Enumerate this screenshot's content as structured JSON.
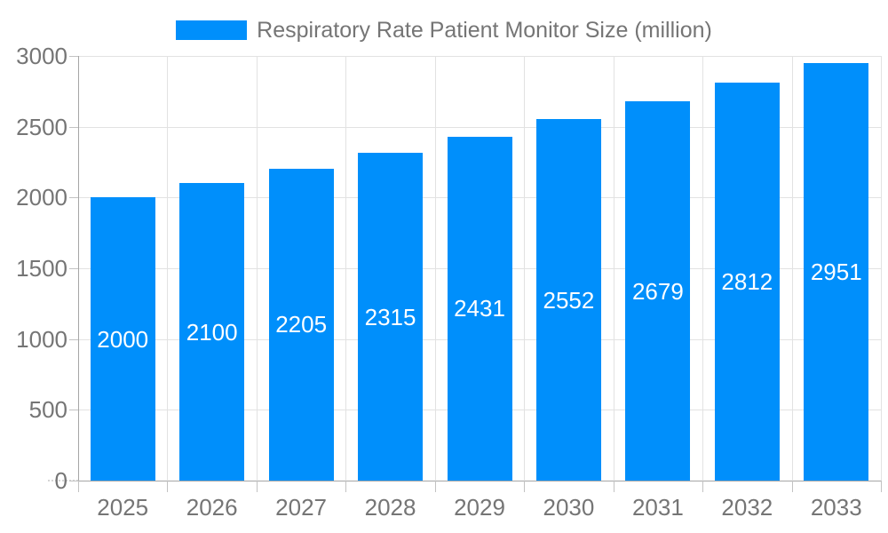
{
  "legend": {
    "swatch_color": "#008FFB"
  },
  "chart_data": {
    "type": "bar",
    "title": "Respiratory Rate Patient Monitor Size (million)",
    "categories": [
      "2025",
      "2026",
      "2027",
      "2028",
      "2029",
      "2030",
      "2031",
      "2032",
      "2033"
    ],
    "values": [
      2000,
      2100,
      2205,
      2315,
      2431,
      2552,
      2679,
      2812,
      2951
    ],
    "xlabel": "",
    "ylabel": "",
    "ylim": [
      0,
      3000
    ],
    "yticks": [
      0,
      500,
      1000,
      1500,
      2000,
      2500,
      3000
    ],
    "grid": true,
    "legend_position": "top",
    "value_label_position": "inside-middle",
    "colors": {
      "bar": "#008FFB",
      "value_label": "#FFFFFF",
      "axis_text": "#757575",
      "grid_line": "#E2E2E2",
      "axis_line": "#A6A6A6",
      "tick_line": "#C2C2C2"
    }
  }
}
